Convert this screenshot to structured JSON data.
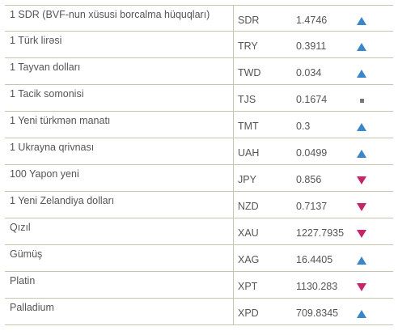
{
  "colors": {
    "up": "#3a86c8",
    "down": "#c5266a",
    "same": "#777777",
    "divider": "#c9c3b2"
  },
  "rates": [
    {
      "name": "1 SDR (BVF-nun xüsusi borcalma hüquqları)",
      "code": "SDR",
      "value": "1.4746",
      "trend": "up"
    },
    {
      "name": "1 Türk lirəsi",
      "code": "TRY",
      "value": "0.3911",
      "trend": "up"
    },
    {
      "name": "1 Tayvan dolları",
      "code": "TWD",
      "value": "0.034",
      "trend": "up"
    },
    {
      "name": "1 Tacik somonisi",
      "code": "TJS",
      "value": "0.1674",
      "trend": "same"
    },
    {
      "name": "1 Yeni türkmən manatı",
      "code": "TMT",
      "value": "0.3",
      "trend": "up"
    },
    {
      "name": "1 Ukrayna qrivnası",
      "code": "UAH",
      "value": "0.0499",
      "trend": "up"
    },
    {
      "name": "100 Yapon yeni",
      "code": "JPY",
      "value": "0.856",
      "trend": "down"
    },
    {
      "name": "1 Yeni Zelandiya dolları",
      "code": "NZD",
      "value": "0.7137",
      "trend": "down"
    },
    {
      "name": "Qızıl",
      "code": "XAU",
      "value": "1227.7935",
      "trend": "down"
    },
    {
      "name": "Gümüş",
      "code": "XAG",
      "value": "16.4405",
      "trend": "up"
    },
    {
      "name": "Platin",
      "code": "XPT",
      "value": "1130.283",
      "trend": "down"
    },
    {
      "name": "Palladium",
      "code": "XPD",
      "value": "709.8345",
      "trend": "up"
    }
  ]
}
